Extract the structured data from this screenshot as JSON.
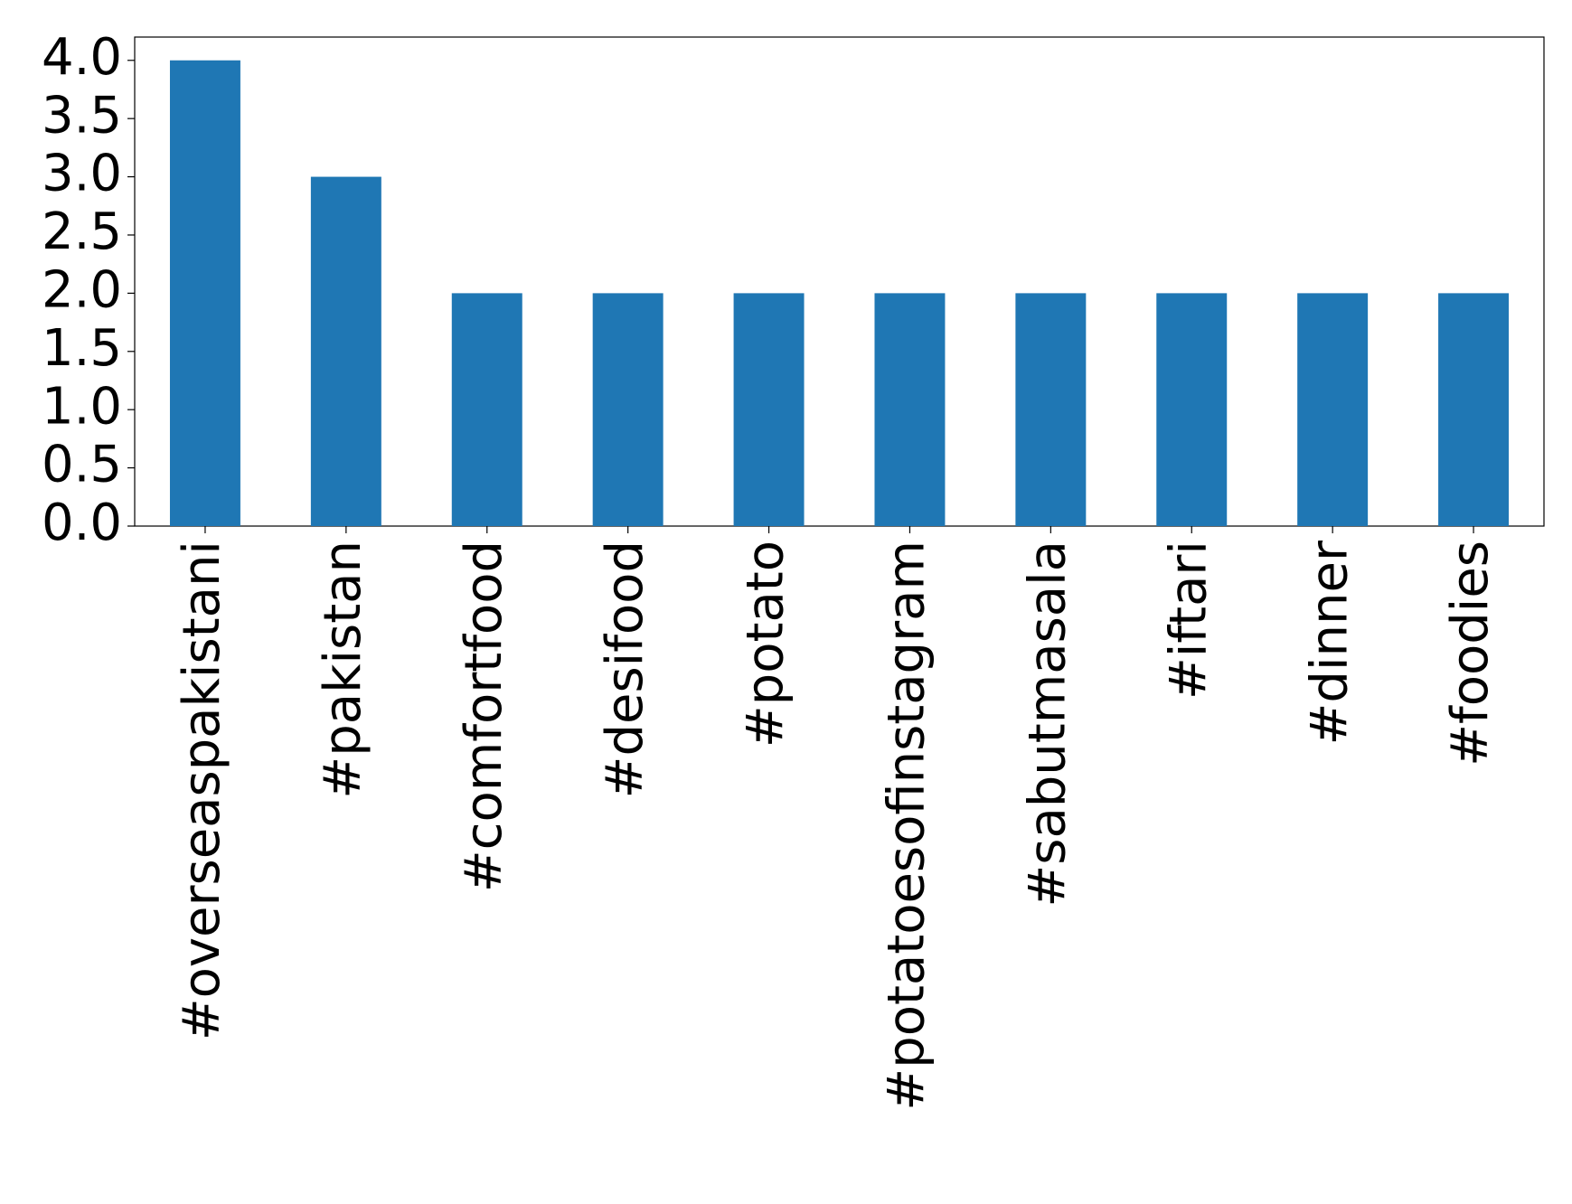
{
  "chart_data": {
    "type": "bar",
    "categories": [
      "#overseaspakistani",
      "#pakistan",
      "#comfortfood",
      "#desifood",
      "#potato",
      "#potatoesofinstagram",
      "#sabutmasala",
      "#iftari",
      "#dinner",
      "#foodies"
    ],
    "values": [
      4,
      3,
      2,
      2,
      2,
      2,
      2,
      2,
      2,
      2
    ],
    "color": "#1f77b4",
    "ylim": [
      0,
      4.2
    ],
    "yticks": [
      {
        "value": 0,
        "label": "0.0"
      },
      0.5,
      {
        "value": 1,
        "label": "1.0"
      },
      1.5,
      {
        "value": 2,
        "label": "2.0"
      },
      2.5,
      {
        "value": 3,
        "label": "3.0"
      },
      3.5,
      {
        "value": 4,
        "label": "4.0"
      }
    ],
    "grid": false
  }
}
